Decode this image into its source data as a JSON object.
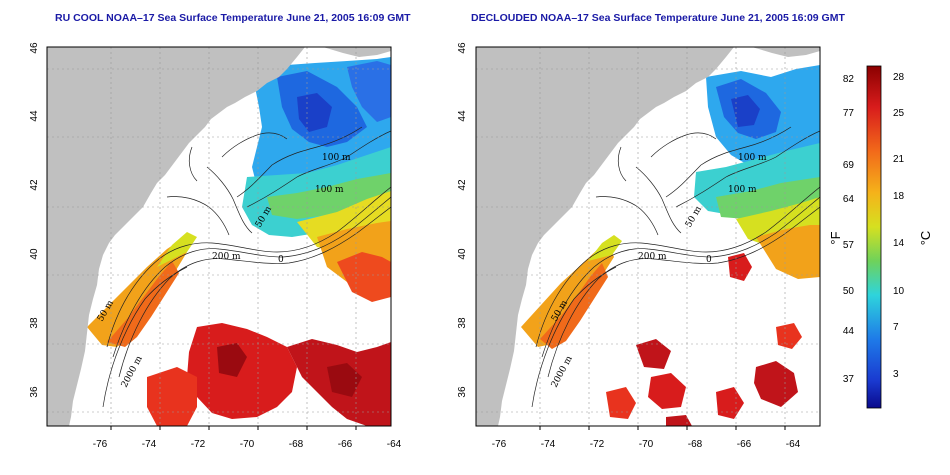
{
  "maps": [
    {
      "title": "RU COOL NOAA–17 Sea Surface Temperature June 21, 2005 16:09 GMT",
      "variant": "raw",
      "x_ticks": [
        "-76",
        "-74",
        "-72",
        "-70",
        "-68",
        "-66",
        "-64"
      ],
      "y_ticks": [
        "46",
        "44",
        "42",
        "40",
        "38",
        "36"
      ],
      "contour_labels": [
        "100 m",
        "100 m",
        "50 m",
        "200 m",
        "50 m",
        "2000 m",
        "0"
      ]
    },
    {
      "title": "DECLOUDED NOAA–17 Sea Surface Temperature June 21, 2005 16:09 GMT",
      "variant": "declouded",
      "x_ticks": [
        "-76",
        "-74",
        "-72",
        "-70",
        "-68",
        "-66",
        "-64"
      ],
      "y_ticks": [
        "46",
        "44",
        "42",
        "40",
        "38",
        "36"
      ],
      "contour_labels": [
        "100 m",
        "100 m",
        "50 m",
        "200 m",
        "50 m",
        "2000 m",
        "0"
      ]
    }
  ],
  "colorbar": {
    "fahrenheit_unit": "°F",
    "celsius_unit": "°C",
    "fahrenheit_ticks": [
      "82",
      "77",
      "69",
      "64",
      "57",
      "50",
      "44",
      "37"
    ],
    "celsius_ticks": [
      "28",
      "25",
      "21",
      "18",
      "14",
      "10",
      "7",
      "3"
    ],
    "colors": {
      "top": "#8b0000",
      "red": "#e8231e",
      "orange": "#f59a1a",
      "yellow": "#e6e020",
      "green": "#7fd24a",
      "cyan": "#2ed4dc",
      "blue": "#1e6ee8",
      "bottom": "#0a0a8c"
    }
  },
  "colors": {
    "land": "#c0c0c0",
    "no_data": "#ffffff",
    "title": "#1a1aa6"
  }
}
